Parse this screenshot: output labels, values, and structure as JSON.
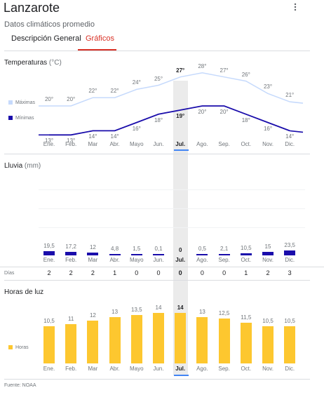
{
  "header": {
    "title": "Lanzarote",
    "subtitle": "Datos climáticos promedio",
    "more_icon": "more-vert-icon"
  },
  "tabs": [
    {
      "label": "Descripción General",
      "active": false
    },
    {
      "label": "Gráficos",
      "active": true
    }
  ],
  "months": [
    "Ene.",
    "Feb.",
    "Mar",
    "Abr.",
    "Mayo",
    "Jun.",
    "Jul.",
    "Ago.",
    "Sep.",
    "Oct.",
    "Nov.",
    "Dic."
  ],
  "selected_month_index": 6,
  "temperature": {
    "title": "Temperaturas",
    "unit": "(°C)",
    "legend_max": "Máximas",
    "legend_min": "Mínimas",
    "max_labels": [
      "20°",
      "20°",
      "22°",
      "22°",
      "24°",
      "25°",
      "27°",
      "28°",
      "27°",
      "26°",
      "23°",
      "21°"
    ],
    "min_labels": [
      "13°",
      "13°",
      "14°",
      "14°",
      "16°",
      "18°",
      "19°",
      "20°",
      "20°",
      "18°",
      "16°",
      "14°"
    ]
  },
  "rain": {
    "title": "Lluvia",
    "unit": "(mm)",
    "value_labels": [
      "19,5",
      "17,2",
      "12",
      "4,8",
      "1,5",
      "0,1",
      "0",
      "0,5",
      "2,1",
      "10,5",
      "15",
      "23,5"
    ],
    "days_label": "Días",
    "days": [
      "2",
      "2",
      "2",
      "1",
      "0",
      "0",
      "0",
      "0",
      "0",
      "1",
      "2",
      "3"
    ]
  },
  "daylight": {
    "title": "Horas de luz",
    "legend": "Horas",
    "value_labels": [
      "10,5",
      "11",
      "12",
      "13",
      "13,5",
      "14",
      "14",
      "13",
      "12,5",
      "11,5",
      "10,5",
      "10,5"
    ]
  },
  "source": "Fuente: NOAA",
  "colors": {
    "max_line": "#c6dafc",
    "min_line": "#1a0dab",
    "rain_bar": "#1a0dab",
    "daylight_bar": "#fdc72f",
    "accent_tab": "#d93025",
    "selected_marker": "#4285f4"
  },
  "chart_data": [
    {
      "type": "line",
      "title": "Temperaturas (°C)",
      "categories": [
        "Ene.",
        "Feb.",
        "Mar",
        "Abr.",
        "Mayo",
        "Jun.",
        "Jul.",
        "Ago.",
        "Sep.",
        "Oct.",
        "Nov.",
        "Dic."
      ],
      "series": [
        {
          "name": "Máximas",
          "values": [
            20,
            20,
            22,
            22,
            24,
            25,
            27,
            28,
            27,
            26,
            23,
            21
          ]
        },
        {
          "name": "Mínimas",
          "values": [
            13,
            13,
            14,
            14,
            16,
            18,
            19,
            20,
            20,
            18,
            16,
            14
          ]
        }
      ]
    },
    {
      "type": "bar",
      "title": "Lluvia (mm)",
      "categories": [
        "Ene.",
        "Feb.",
        "Mar",
        "Abr.",
        "Mayo",
        "Jun.",
        "Jul.",
        "Ago.",
        "Sep.",
        "Oct.",
        "Nov.",
        "Dic."
      ],
      "values": [
        19.5,
        17.2,
        12,
        4.8,
        1.5,
        0.1,
        0,
        0.5,
        2.1,
        10.5,
        15,
        23.5
      ]
    },
    {
      "type": "bar",
      "title": "Horas de luz",
      "categories": [
        "Ene.",
        "Feb.",
        "Mar",
        "Abr.",
        "Mayo",
        "Jun.",
        "Jul.",
        "Ago.",
        "Sep.",
        "Oct.",
        "Nov.",
        "Dic."
      ],
      "series": [
        {
          "name": "Horas",
          "values": [
            10.5,
            11,
            12,
            13,
            13.5,
            14,
            14,
            13,
            12.5,
            11.5,
            10.5,
            10.5
          ]
        }
      ]
    }
  ]
}
